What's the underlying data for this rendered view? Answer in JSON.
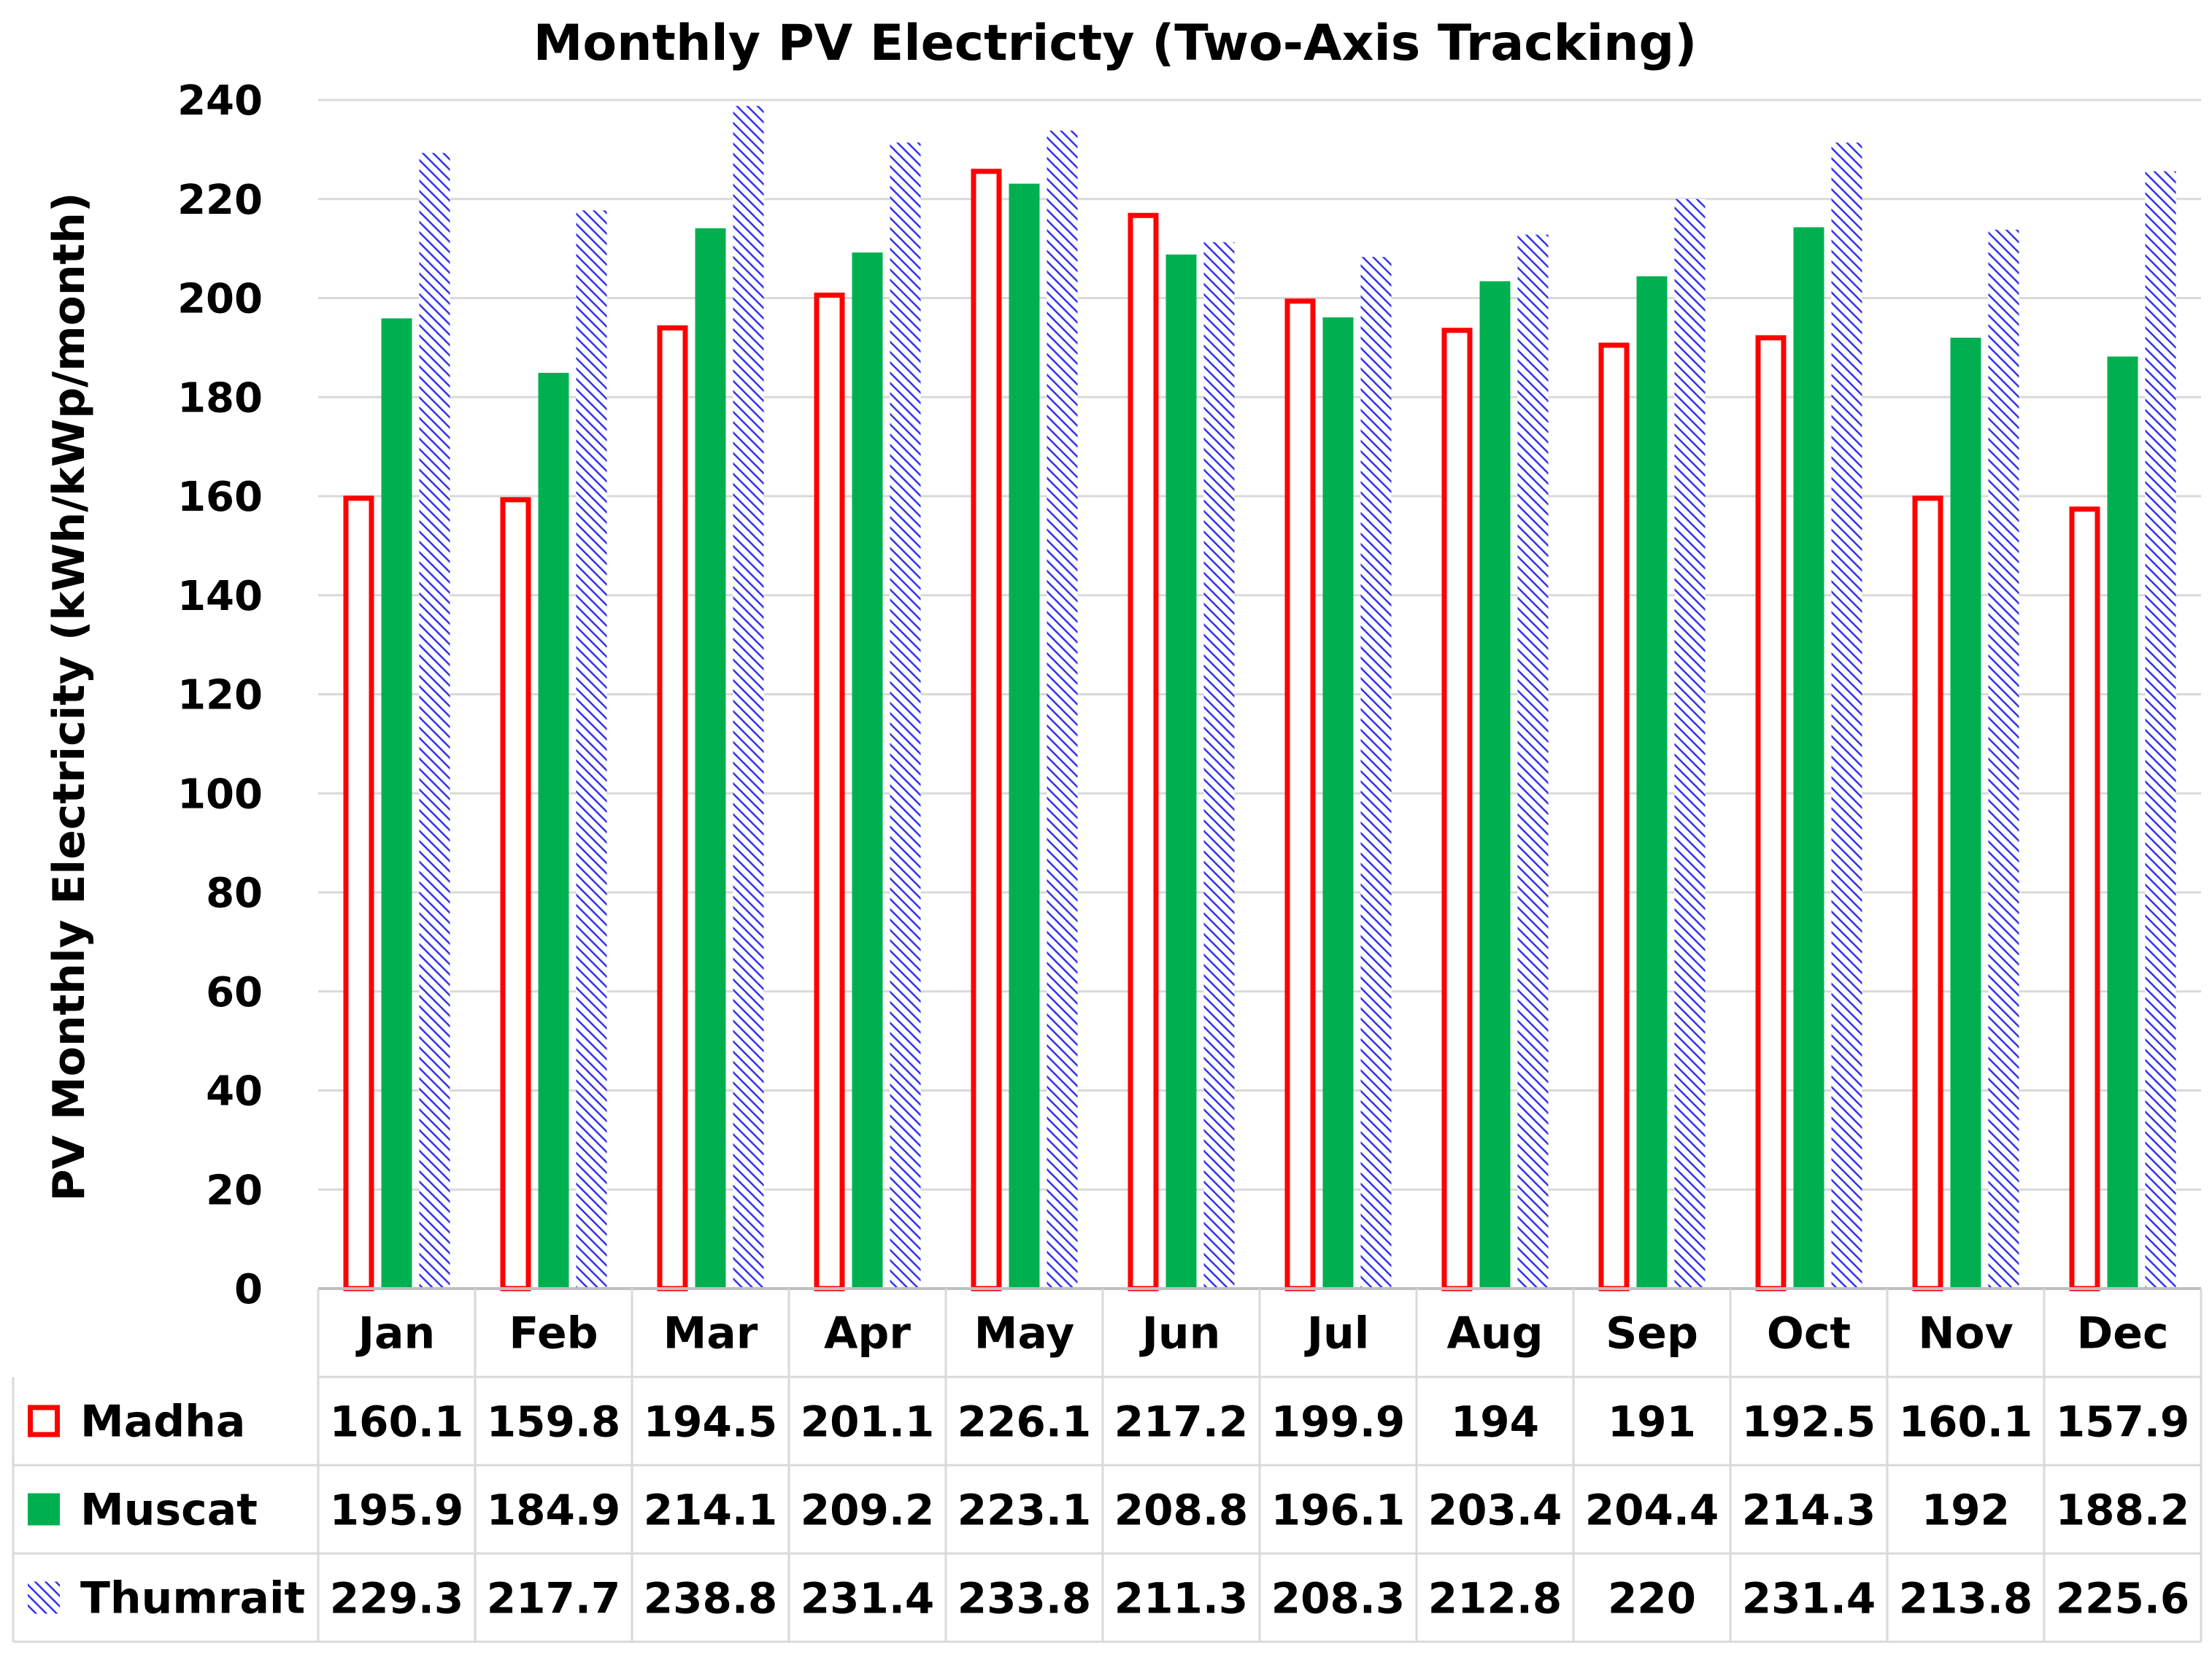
{
  "chart_data": {
    "type": "bar",
    "title": "Monthly PV Electricty (Two-Axis Tracking)",
    "xlabel": "",
    "ylabel": "PV Monthly Electricity (kWh/kWp/month)",
    "ylim": [
      0,
      240
    ],
    "yticks": [
      "0",
      "20",
      "40",
      "60",
      "80",
      "100",
      "120",
      "140",
      "160",
      "180",
      "200",
      "220",
      "240"
    ],
    "grid": true,
    "categories": [
      "Jan",
      "Feb",
      "Mar",
      "Apr",
      "May",
      "Jun",
      "Jul",
      "Aug",
      "Sep",
      "Oct",
      "Nov",
      "Dec"
    ],
    "series": [
      {
        "name": "Madha",
        "style": "outline",
        "color": "#ff0000",
        "values": [
          160.1,
          159.8,
          194.5,
          201.1,
          226.1,
          217.2,
          199.9,
          194,
          191,
          192.5,
          160.1,
          157.9
        ],
        "labels": [
          "160.1",
          "159.8",
          "194.5",
          "201.1",
          "226.1",
          "217.2",
          "199.9",
          "194",
          "191",
          "192.5",
          "160.1",
          "157.9"
        ]
      },
      {
        "name": "Muscat",
        "style": "solid",
        "color": "#00b050",
        "values": [
          195.9,
          184.9,
          214.1,
          209.2,
          223.1,
          208.8,
          196.1,
          203.4,
          204.4,
          214.3,
          192,
          188.2
        ],
        "labels": [
          "195.9",
          "184.9",
          "214.1",
          "209.2",
          "223.1",
          "208.8",
          "196.1",
          "203.4",
          "204.4",
          "214.3",
          "192",
          "188.2"
        ]
      },
      {
        "name": "Thumrait",
        "style": "hatched",
        "color": "#3333ee",
        "values": [
          229.3,
          217.7,
          238.8,
          231.4,
          233.8,
          211.3,
          208.3,
          212.8,
          220,
          231.4,
          213.8,
          225.6
        ],
        "labels": [
          "229.3",
          "217.7",
          "238.8",
          "231.4",
          "233.8",
          "211.3",
          "208.3",
          "212.8",
          "220",
          "231.4",
          "213.8",
          "225.6"
        ]
      }
    ]
  }
}
